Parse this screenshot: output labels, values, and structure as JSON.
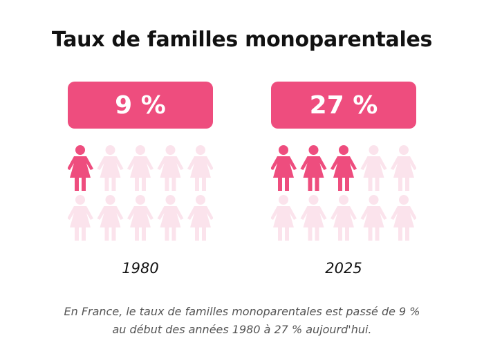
{
  "title": "Taux de familles monoparentales",
  "caption": {
    "line1": "En France, le taux de familles monoparentales est passé de 9 %",
    "line2": "au début des années 1980 à 27 % aujourd'hui."
  },
  "colors": {
    "accent": "#ee4d7e",
    "faded": "#fbe3ec"
  },
  "icon": "woman-icon",
  "chart_data": {
    "type": "pictogram",
    "icons_per_panel": 10,
    "series": [
      {
        "year": "1980",
        "value_label": "9 %",
        "value": 9,
        "filled_icons": 1
      },
      {
        "year": "2025",
        "value_label": "27 %",
        "value": 27,
        "filled_icons": 3
      }
    ]
  }
}
